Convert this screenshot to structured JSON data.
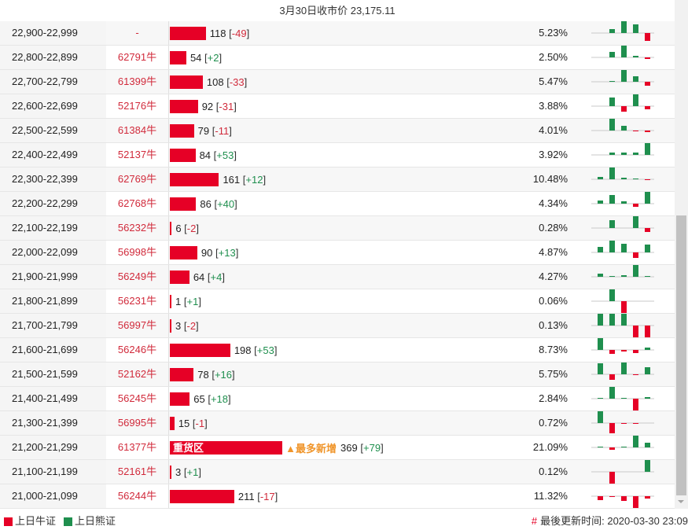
{
  "header": {
    "title": "3月30日收市价 23,175.11"
  },
  "colors": {
    "bull": "#e60026",
    "bear": "#1f8f4e",
    "hot": "#f0952a"
  },
  "rows": [
    {
      "range": "22,900-22,999",
      "bull": "-",
      "count": 118,
      "change": "-49",
      "pct": "5.23%",
      "spark": [
        0,
        5,
        15,
        11,
        -10
      ]
    },
    {
      "range": "22,800-22,899",
      "bull": "62791牛",
      "count": 54,
      "change": "+2",
      "pct": "2.50%",
      "spark": [
        0,
        7,
        15,
        2,
        -2
      ]
    },
    {
      "range": "22,700-22,799",
      "bull": "61399牛",
      "count": 108,
      "change": "-33",
      "pct": "5.47%",
      "spark": [
        0,
        1,
        15,
        7,
        -5
      ]
    },
    {
      "range": "22,600-22,699",
      "bull": "52176牛",
      "count": 92,
      "change": "-31",
      "pct": "3.88%",
      "spark": [
        0,
        11,
        -7,
        15,
        -4
      ]
    },
    {
      "range": "22,500-22,599",
      "bull": "61384牛",
      "count": 79,
      "change": "-11",
      "pct": "4.01%",
      "spark": [
        0,
        15,
        6,
        -1,
        -2
      ]
    },
    {
      "range": "22,400-22,499",
      "bull": "52137牛",
      "count": 84,
      "change": "+53",
      "pct": "3.92%",
      "spark": [
        0,
        3,
        3,
        3,
        15
      ]
    },
    {
      "range": "22,300-22,399",
      "bull": "62769牛",
      "count": 161,
      "change": "+12",
      "pct": "10.48%",
      "spark": [
        3,
        15,
        2,
        1,
        -1
      ]
    },
    {
      "range": "22,200-22,299",
      "bull": "62768牛",
      "count": 86,
      "change": "+40",
      "pct": "4.34%",
      "spark": [
        4,
        11,
        3,
        -4,
        15
      ]
    },
    {
      "range": "22,100-22,199",
      "bull": "56232牛",
      "count": 6,
      "change": "-2",
      "pct": "0.28%",
      "spark": [
        0,
        10,
        0,
        15,
        -5
      ]
    },
    {
      "range": "22,000-22,099",
      "bull": "56998牛",
      "count": 90,
      "change": "+13",
      "pct": "4.87%",
      "spark": [
        7,
        15,
        11,
        -7,
        10
      ]
    },
    {
      "range": "21,900-21,999",
      "bull": "56249牛",
      "count": 64,
      "change": "+4",
      "pct": "4.27%",
      "spark": [
        4,
        1,
        2,
        15,
        1
      ]
    },
    {
      "range": "21,800-21,899",
      "bull": "56231牛",
      "count": 1,
      "change": "+1",
      "pct": "0.06%",
      "spark": [
        0,
        15,
        -15,
        0,
        0
      ]
    },
    {
      "range": "21,700-21,799",
      "bull": "56997牛",
      "count": 3,
      "change": "-2",
      "pct": "0.13%",
      "spark": [
        15,
        15,
        15,
        -15,
        -15
      ]
    },
    {
      "range": "21,600-21,699",
      "bull": "56246牛",
      "count": 198,
      "change": "+53",
      "pct": "8.73%",
      "spark": [
        15,
        -5,
        -2,
        -4,
        3
      ]
    },
    {
      "range": "21,500-21,599",
      "bull": "52162牛",
      "count": 78,
      "change": "+16",
      "pct": "5.75%",
      "spark": [
        14,
        -7,
        15,
        -1,
        9
      ]
    },
    {
      "range": "21,400-21,499",
      "bull": "56245牛",
      "count": 65,
      "change": "+18",
      "pct": "2.84%",
      "spark": [
        1,
        15,
        1,
        -15,
        2
      ]
    },
    {
      "range": "21,300-21,399",
      "bull": "56995牛",
      "count": 15,
      "change": "-1",
      "pct": "0.72%",
      "spark": [
        15,
        -13,
        -1,
        -1,
        0
      ]
    },
    {
      "range": "21,200-21,299",
      "bull": "61377牛",
      "count": 369,
      "change": "+79",
      "pct": "21.09%",
      "zone": "重货区",
      "hot": "▲最多新增",
      "spark": [
        1,
        -3,
        1,
        15,
        6
      ]
    },
    {
      "range": "21,100-21,199",
      "bull": "52161牛",
      "count": 3,
      "change": "+1",
      "pct": "0.12%",
      "spark": [
        0,
        -15,
        0,
        0,
        15
      ]
    },
    {
      "range": "21,000-21,099",
      "bull": "56244牛",
      "count": 211,
      "change": "-17",
      "pct": "11.32%",
      "spark": [
        -5,
        -1,
        -6,
        -15,
        -3
      ]
    }
  ],
  "footer": {
    "legend_bull": "上日牛证",
    "legend_bear": "上日熊证",
    "update_icon": "#",
    "update_text": "最後更新时间: 2020-03-30 23:09"
  }
}
